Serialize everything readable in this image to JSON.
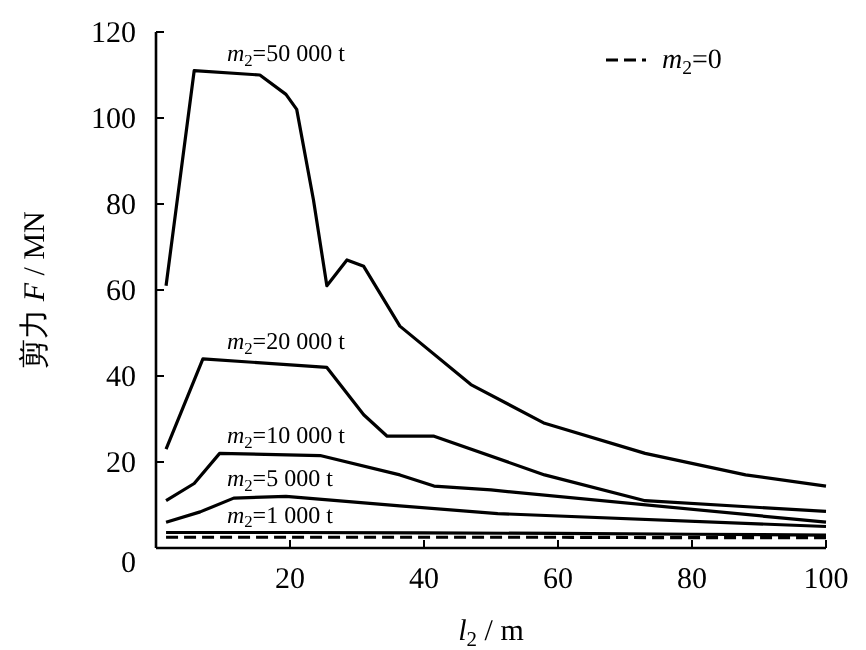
{
  "chart_data": {
    "type": "line",
    "xlabel": "*l*$_{2}$ / m",
    "ylabel": "剪力 *F* / MN",
    "xlim": [
      0,
      100
    ],
    "ylim": [
      0,
      120
    ],
    "xticks": [
      20,
      40,
      60,
      80,
      100
    ],
    "yticks": [
      0,
      20,
      40,
      60,
      80,
      100,
      120
    ],
    "legend": "top right",
    "grid": false,
    "series": [
      {
        "name": "*m*$_{2}$=50 000 t",
        "color": "#000000",
        "line_style": "solid",
        "x": [
          1.5,
          5.7,
          15.5,
          19.4,
          21,
          23.5,
          25.5,
          28.5,
          31,
          36.4,
          47,
          58,
          73,
          88,
          100
        ],
        "values": [
          61,
          111,
          110,
          105.5,
          102,
          81,
          61,
          67,
          65.5,
          51.6,
          38,
          29,
          22,
          17,
          14.4
        ]
      },
      {
        "name": "*m*$_{2}$=20 000 t",
        "color": "#000000",
        "line_style": "solid",
        "x": [
          1.5,
          7,
          25.5,
          31,
          34.5,
          38.5,
          41.5,
          58,
          73,
          100
        ],
        "values": [
          23,
          44,
          42,
          31,
          26,
          26,
          26,
          17,
          11,
          8.5
        ]
      },
      {
        "name": "*m*$_{2}$=10 000 t",
        "color": "#000000",
        "line_style": "solid",
        "x": [
          1.5,
          5.7,
          9.5,
          24.5,
          36.4,
          41.5,
          50,
          100
        ],
        "values": [
          11,
          15,
          22,
          21.5,
          17,
          14.4,
          13.5,
          6
        ]
      },
      {
        "name": "*m*$_{2}$=5 000 t",
        "color": "#000000",
        "line_style": "solid",
        "x": [
          1.5,
          6.6,
          11.6,
          19.4,
          36.4,
          51,
          100
        ],
        "values": [
          6,
          8.4,
          11.6,
          12,
          9.8,
          8,
          5
        ]
      },
      {
        "name": "*m*$_{2}$=1 000 t",
        "color": "#000000",
        "line_style": "solid",
        "x": [
          1.5,
          20,
          40,
          60,
          80,
          100
        ],
        "values": [
          3.6,
          3.6,
          3.5,
          3.4,
          3.2,
          3
        ]
      },
      {
        "name": "*m*$_{2}$=0",
        "color": "#000000",
        "line_style": "dashed",
        "x": [
          1.5,
          20,
          40,
          60,
          80,
          100
        ],
        "values": [
          2.5,
          2.5,
          2.5,
          2.5,
          2.4,
          2.4
        ]
      }
    ]
  }
}
